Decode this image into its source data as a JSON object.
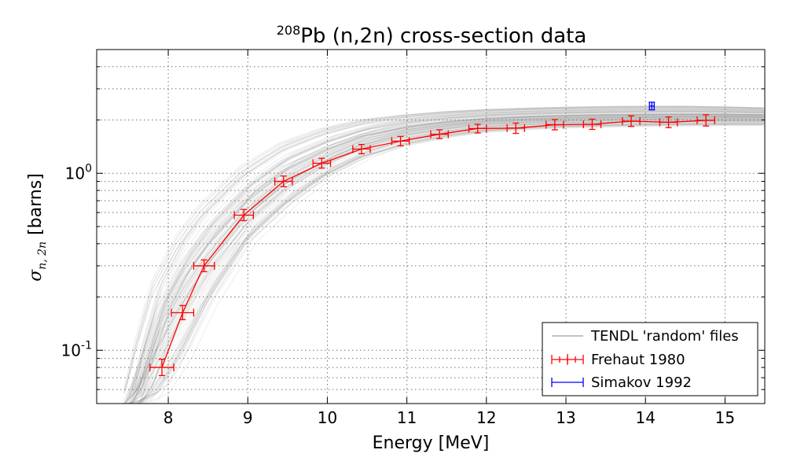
{
  "chart_data": {
    "type": "line",
    "title_super": "208",
    "title": "Pb (n,2n) cross-section data",
    "xlabel": "Energy [MeV]",
    "ylabel_symbol": "σ",
    "ylabel_sub": "n, 2n",
    "ylabel_unit": "[barns]",
    "xlim": [
      7.1,
      15.5
    ],
    "ylim": [
      0.05,
      5.0
    ],
    "yscale": "log",
    "grid": true,
    "legend_position": "bottom-right",
    "x_ticks": [
      8,
      9,
      10,
      11,
      12,
      13,
      14,
      15
    ],
    "x_tick_labels": [
      "8",
      "9",
      "10",
      "11",
      "12",
      "13",
      "14",
      "15"
    ],
    "y_major_ticks": [
      0.1,
      1.0
    ],
    "y_tick_labels": [
      {
        "base": "10",
        "exp": "-1"
      },
      {
        "base": "10",
        "exp": "0"
      }
    ],
    "series": [
      {
        "name": "TENDL 'random' files",
        "color": "#808080",
        "style": "band",
        "envelope": {
          "x": [
            7.55,
            7.7,
            7.9,
            8.2,
            8.5,
            9.0,
            9.5,
            10.0,
            10.5,
            11.0,
            11.5,
            12.0,
            12.5,
            13.0,
            13.5,
            14.0,
            14.5,
            15.0,
            15.5
          ],
          "low": [
            0.05,
            0.05,
            0.05,
            0.08,
            0.16,
            0.38,
            0.62,
            0.92,
            1.2,
            1.42,
            1.58,
            1.7,
            1.76,
            1.8,
            1.82,
            1.84,
            1.85,
            1.86,
            1.86
          ],
          "mid": [
            0.05,
            0.065,
            0.12,
            0.22,
            0.34,
            0.62,
            0.95,
            1.25,
            1.55,
            1.75,
            1.88,
            1.97,
            2.02,
            2.05,
            2.07,
            2.08,
            2.09,
            2.09,
            2.08
          ],
          "high": [
            0.06,
            0.12,
            0.25,
            0.45,
            0.68,
            1.1,
            1.5,
            1.8,
            2.02,
            2.15,
            2.24,
            2.3,
            2.34,
            2.37,
            2.39,
            2.4,
            2.4,
            2.38,
            2.35
          ]
        }
      },
      {
        "name": "Frehaut 1980",
        "color": "#ff0000",
        "style": "errorbar-line",
        "x": [
          7.92,
          8.18,
          8.45,
          8.95,
          9.45,
          9.93,
          10.43,
          10.92,
          11.41,
          11.89,
          12.37,
          12.86,
          13.33,
          13.82,
          14.29,
          14.76
        ],
        "y": [
          0.08,
          0.163,
          0.3,
          0.58,
          0.9,
          1.14,
          1.37,
          1.52,
          1.66,
          1.79,
          1.8,
          1.88,
          1.89,
          1.97,
          1.94,
          1.99
        ],
        "xerr": [
          0.15,
          0.14,
          0.13,
          0.12,
          0.11,
          0.11,
          0.11,
          0.11,
          0.11,
          0.11,
          0.11,
          0.11,
          0.11,
          0.11,
          0.11,
          0.11
        ],
        "yerr_low": [
          0.008,
          0.014,
          0.022,
          0.04,
          0.06,
          0.07,
          0.08,
          0.09,
          0.09,
          0.1,
          0.12,
          0.12,
          0.12,
          0.13,
          0.13,
          0.14
        ],
        "yerr_high": [
          0.009,
          0.016,
          0.024,
          0.045,
          0.065,
          0.075,
          0.085,
          0.095,
          0.1,
          0.1,
          0.12,
          0.13,
          0.13,
          0.14,
          0.14,
          0.15
        ]
      },
      {
        "name": "Simakov 1992",
        "color": "#0000ff",
        "style": "errorbar",
        "x": [
          14.08
        ],
        "y": [
          2.4
        ],
        "xerr": [
          0.03
        ],
        "yerr_low": [
          0.12
        ],
        "yerr_high": [
          0.12
        ]
      }
    ]
  }
}
